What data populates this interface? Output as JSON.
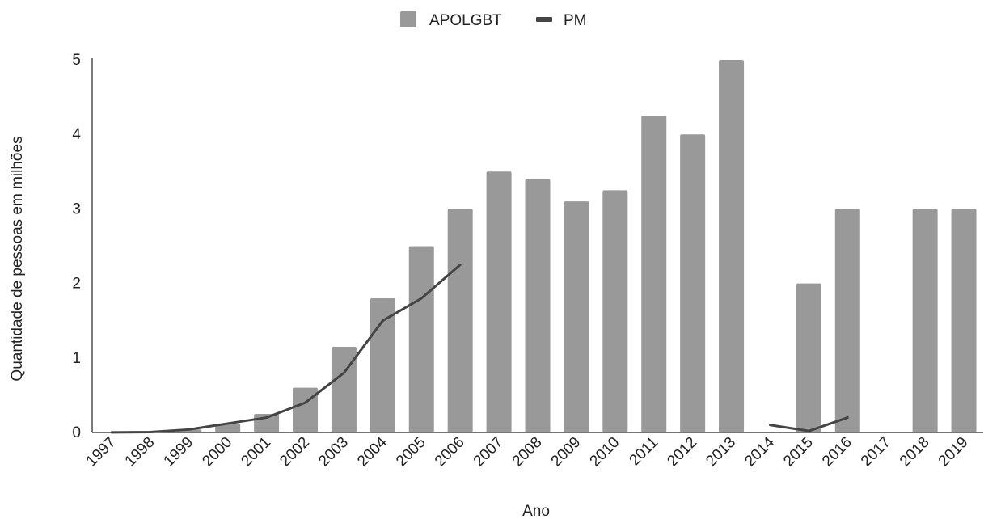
{
  "chart_data": {
    "type": "bar",
    "xlabel": "Ano",
    "ylabel": "Quantidade de pessoas em milhões",
    "ylim": [
      0,
      5
    ],
    "yticks": [
      "0",
      "1",
      "2",
      "3",
      "4",
      "5"
    ],
    "grid": false,
    "legend_position": "top-center",
    "categories": [
      "1997",
      "1998",
      "1999",
      "2000",
      "2001",
      "2002",
      "2003",
      "2004",
      "2005",
      "2006",
      "2007",
      "2008",
      "2009",
      "2010",
      "2011",
      "2012",
      "2013",
      "2014",
      "2015",
      "2016",
      "2017",
      "2018",
      "2019"
    ],
    "series": [
      {
        "name": "APOLGBT",
        "kind": "bar",
        "color": "#999999",
        "values": [
          0.002,
          0.005,
          0.04,
          0.12,
          0.25,
          0.6,
          1.15,
          1.8,
          2.5,
          3.0,
          3.5,
          3.4,
          3.1,
          3.25,
          4.25,
          4.0,
          5.0,
          null,
          2.0,
          3.0,
          null,
          3.0,
          3.0
        ]
      },
      {
        "name": "PM",
        "kind": "line",
        "color": "#444444",
        "values": [
          0.002,
          0.005,
          0.04,
          0.12,
          0.2,
          0.4,
          0.8,
          1.5,
          1.8,
          2.25,
          null,
          null,
          null,
          null,
          null,
          null,
          null,
          0.1,
          0.02,
          0.2,
          null,
          null,
          null
        ]
      }
    ]
  }
}
